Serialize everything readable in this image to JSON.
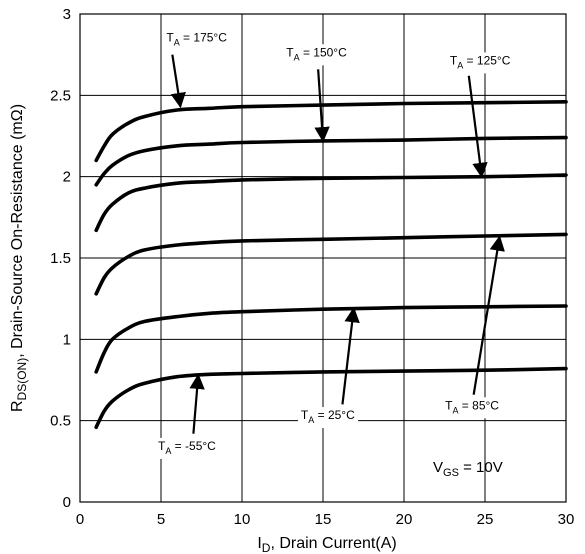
{
  "chart_data": {
    "type": "line",
    "xlabel_main": "I",
    "xlabel_sub": "D",
    "xlabel_rest": ", Drain Current(A)",
    "ylabel_main": "R",
    "ylabel_sub": "DS(ON)",
    "ylabel_rest": ", Drain-Source On-Resistance (mΩ)",
    "xlim": [
      0,
      30
    ],
    "ylim": [
      0,
      3
    ],
    "x_ticks": [
      0,
      5,
      10,
      15,
      20,
      25,
      30
    ],
    "y_ticks": [
      0,
      0.5,
      1,
      1.5,
      2,
      2.5,
      3
    ],
    "x_tick_labels": [
      "0",
      "5",
      "10",
      "15",
      "20",
      "25",
      "30"
    ],
    "y_tick_labels": [
      "0",
      "0.5",
      "1",
      "1.5",
      "2",
      "2.5",
      "3"
    ],
    "grid": true,
    "series": [
      {
        "name": "TA = 175°C",
        "x": [
          1,
          1.5,
          2,
          3,
          4,
          6,
          8,
          10,
          15,
          20,
          25,
          30
        ],
        "values": [
          2.1,
          2.19,
          2.26,
          2.33,
          2.37,
          2.41,
          2.42,
          2.43,
          2.44,
          2.45,
          2.455,
          2.46
        ]
      },
      {
        "name": "TA = 150°C",
        "x": [
          1,
          1.5,
          2,
          3,
          4,
          6,
          8,
          10,
          15,
          20,
          25,
          30
        ],
        "values": [
          1.95,
          2.02,
          2.07,
          2.13,
          2.16,
          2.19,
          2.2,
          2.21,
          2.22,
          2.225,
          2.235,
          2.24
        ]
      },
      {
        "name": "TA = 125°C",
        "x": [
          1,
          1.5,
          2,
          3,
          4,
          6,
          8,
          10,
          15,
          20,
          25,
          30
        ],
        "values": [
          1.67,
          1.77,
          1.83,
          1.9,
          1.93,
          1.96,
          1.97,
          1.98,
          1.99,
          1.995,
          2.0,
          2.01
        ]
      },
      {
        "name": "TA = 85°C",
        "x": [
          1,
          1.5,
          2,
          3,
          4,
          6,
          8,
          10,
          15,
          20,
          25,
          30
        ],
        "values": [
          1.28,
          1.38,
          1.44,
          1.51,
          1.55,
          1.58,
          1.595,
          1.605,
          1.615,
          1.625,
          1.635,
          1.645
        ]
      },
      {
        "name": "TA = 25°C",
        "x": [
          1,
          1.5,
          2,
          3,
          4,
          6,
          8,
          10,
          15,
          20,
          25,
          30
        ],
        "values": [
          0.8,
          0.92,
          1.0,
          1.07,
          1.11,
          1.14,
          1.16,
          1.17,
          1.185,
          1.195,
          1.2,
          1.205
        ]
      },
      {
        "name": "TA = -55°C",
        "x": [
          1,
          1.5,
          2,
          3,
          4,
          6,
          8,
          10,
          15,
          20,
          25,
          30
        ],
        "values": [
          0.46,
          0.56,
          0.62,
          0.69,
          0.73,
          0.77,
          0.785,
          0.79,
          0.8,
          0.805,
          0.81,
          0.82
        ]
      }
    ],
    "annotations": [
      {
        "sub": "A",
        "rest": " = 175°C",
        "label_x": 7.2,
        "label_y": 2.83,
        "arrow_from": [
          5.7,
          2.75
        ],
        "arrow_to": [
          6.2,
          2.43
        ]
      },
      {
        "sub": "A",
        "rest": " = 150°C",
        "label_x": 14.6,
        "label_y": 2.74,
        "arrow_from": [
          14.7,
          2.66
        ],
        "arrow_to": [
          15.0,
          2.22
        ]
      },
      {
        "sub": "A",
        "rest": " = 125°C",
        "label_x": 24.7,
        "label_y": 2.69,
        "arrow_from": [
          24.0,
          2.62
        ],
        "arrow_to": [
          24.8,
          2.0
        ]
      },
      {
        "sub": "A",
        "rest": " = 85°C",
        "label_x": 24.2,
        "label_y": 0.57,
        "arrow_from": [
          24.3,
          0.66
        ],
        "arrow_to": [
          25.9,
          1.63
        ]
      },
      {
        "sub": "A",
        "rest": " = 25°C",
        "label_x": 15.3,
        "label_y": 0.51,
        "arrow_from": [
          16.2,
          0.6
        ],
        "arrow_to": [
          16.9,
          1.19
        ]
      },
      {
        "sub": "A",
        "rest": " = -55°C",
        "label_x": 6.6,
        "label_y": 0.32,
        "arrow_from": [
          7.0,
          0.42
        ],
        "arrow_to": [
          7.3,
          0.78
        ]
      }
    ],
    "vgs_main": "V",
    "vgs_sub": "GS",
    "vgs_rest": " = 10V"
  }
}
